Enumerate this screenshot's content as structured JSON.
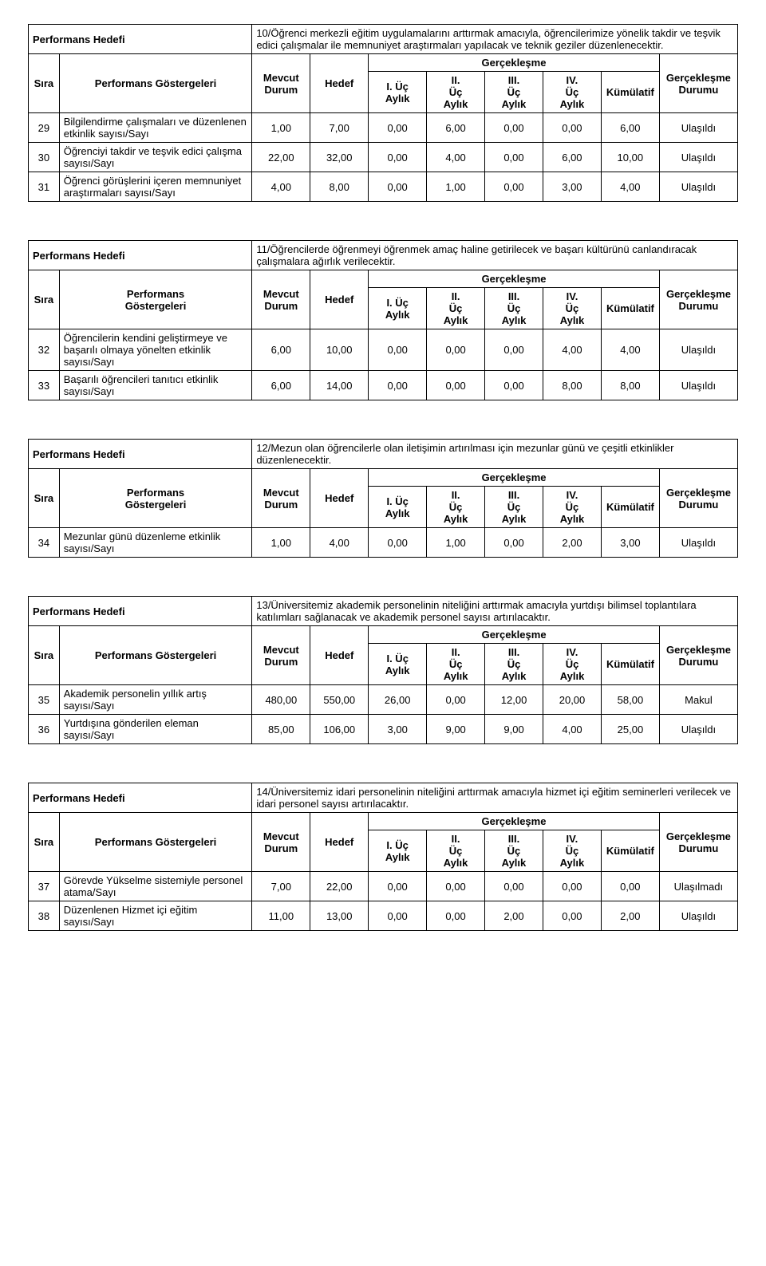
{
  "labels": {
    "perfHedefi": "Performans Hedefi",
    "sira": "Sıra",
    "perfGost": "Performans Göstergeleri",
    "perfGostShort": "Performans\nGöstergeleri",
    "mevcut": "Mevcut\nDurum",
    "hedef": "Hedef",
    "gerceklesme": "Gerçekleşme",
    "q1": "I. Üç\nAylık",
    "q2": "II.\nÜç\nAylık",
    "q3": "III.\nÜç\nAylık",
    "q4": "IV.\nÜç\nAylık",
    "kum": "Kümülatif",
    "durum": "Gerçekleşme\nDurumu"
  },
  "blocks": [
    {
      "goal": "10/Öğrenci merkezli eğitim uygulamalarını arttırmak amacıyla, öğrencilerimize yönelik takdir ve teşvik edici çalışmalar ile memnuniyet araştırmaları yapılacak ve teknik geziler düzenlenecektir.",
      "indicatorHeader": "long",
      "rows": [
        {
          "n": "29",
          "ind": "Bilgilendirme çalışmaları ve düzenlenen etkinlik sayısı/Sayı",
          "m": "1,00",
          "h": "7,00",
          "q1": "0,00",
          "q2": "6,00",
          "q3": "0,00",
          "q4": "0,00",
          "k": "6,00",
          "r": "Ulaşıldı"
        },
        {
          "n": "30",
          "ind": "Öğrenciyi takdir ve teşvik edici çalışma sayısı/Sayı",
          "m": "22,00",
          "h": "32,00",
          "q1": "0,00",
          "q2": "4,00",
          "q3": "0,00",
          "q4": "6,00",
          "k": "10,00",
          "r": "Ulaşıldı"
        },
        {
          "n": "31",
          "ind": "Öğrenci görüşlerini içeren memnuniyet araştırmaları sayısı/Sayı",
          "m": "4,00",
          "h": "8,00",
          "q1": "0,00",
          "q2": "1,00",
          "q3": "0,00",
          "q4": "3,00",
          "k": "4,00",
          "r": "Ulaşıldı"
        }
      ]
    },
    {
      "goal": "11/Öğrencilerde öğrenmeyi öğrenmek amaç haline getirilecek ve başarı kültürünü canlandıracak çalışmalara ağırlık verilecektir.",
      "indicatorHeader": "short",
      "rows": [
        {
          "n": "32",
          "ind": "Öğrencilerin kendini geliştirmeye ve başarılı olmaya yönelten etkinlik sayısı/Sayı",
          "m": "6,00",
          "h": "10,00",
          "q1": "0,00",
          "q2": "0,00",
          "q3": "0,00",
          "q4": "4,00",
          "k": "4,00",
          "r": "Ulaşıldı"
        },
        {
          "n": "33",
          "ind": "Başarılı öğrencileri tanıtıcı etkinlik sayısı/Sayı",
          "m": "6,00",
          "h": "14,00",
          "q1": "0,00",
          "q2": "0,00",
          "q3": "0,00",
          "q4": "8,00",
          "k": "8,00",
          "r": "Ulaşıldı"
        }
      ]
    },
    {
      "goal": "12/Mezun olan öğrencilerle olan iletişimin artırılması için mezunlar günü ve çeşitli etkinlikler düzenlenecektir.",
      "indicatorHeader": "short",
      "rows": [
        {
          "n": "34",
          "ind": "Mezunlar günü düzenleme etkinlik sayısı/Sayı",
          "m": "1,00",
          "h": "4,00",
          "q1": "0,00",
          "q2": "1,00",
          "q3": "0,00",
          "q4": "2,00",
          "k": "3,00",
          "r": "Ulaşıldı"
        }
      ]
    },
    {
      "goal": "13/Üniversitemiz akademik personelinin niteliğini arttırmak amacıyla yurtdışı bilimsel toplantılara katılımları sağlanacak ve akademik personel sayısı artırılacaktır.",
      "indicatorHeader": "long",
      "rows": [
        {
          "n": "35",
          "ind": "Akademik personelin yıllık artış sayısı/Sayı",
          "m": "480,00",
          "h": "550,00",
          "q1": "26,00",
          "q2": "0,00",
          "q3": "12,00",
          "q4": "20,00",
          "k": "58,00",
          "r": "Makul"
        },
        {
          "n": "36",
          "ind": "Yurtdışına gönderilen eleman sayısı/Sayı",
          "m": "85,00",
          "h": "106,00",
          "q1": "3,00",
          "q2": "9,00",
          "q3": "9,00",
          "q4": "4,00",
          "k": "25,00",
          "r": "Ulaşıldı"
        }
      ]
    },
    {
      "goal": "14/Üniversitemiz idari personelinin niteliğini arttırmak amacıyla hizmet içi eğitim seminerleri verilecek ve idari personel sayısı artırılacaktır.",
      "indicatorHeader": "long",
      "rows": [
        {
          "n": "37",
          "ind": "Görevde Yükselme sistemiyle personel atama/Sayı",
          "m": "7,00",
          "h": "22,00",
          "q1": "0,00",
          "q2": "0,00",
          "q3": "0,00",
          "q4": "0,00",
          "k": "0,00",
          "r": "Ulaşılmadı"
        },
        {
          "n": "38",
          "ind": "Düzenlenen Hizmet içi eğitim sayısı/Sayı",
          "m": "11,00",
          "h": "13,00",
          "q1": "0,00",
          "q2": "0,00",
          "q3": "2,00",
          "q4": "0,00",
          "k": "2,00",
          "r": "Ulaşıldı"
        }
      ]
    }
  ]
}
